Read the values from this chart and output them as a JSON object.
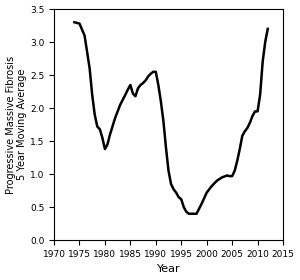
{
  "title": "",
  "xlabel": "Year",
  "ylabel": "Progressive Massive Fibrosis\n5 Year Moving Average",
  "xlim": [
    1970,
    2015
  ],
  "ylim": [
    0.0,
    3.5
  ],
  "xticks": [
    1970,
    1975,
    1980,
    1985,
    1990,
    1995,
    2000,
    2005,
    2010,
    2015
  ],
  "yticks": [
    0.0,
    0.5,
    1.0,
    1.5,
    2.0,
    2.5,
    3.0,
    3.5
  ],
  "line_color": "#000000",
  "line_width": 1.8,
  "background_color": "#ffffff",
  "years": [
    1974,
    1975,
    1976,
    1977,
    1977.5,
    1978,
    1978.5,
    1979,
    1979.5,
    1980,
    1980.5,
    1981,
    1982,
    1983,
    1984,
    1984.5,
    1985,
    1985.5,
    1986,
    1986.5,
    1987,
    1987.5,
    1988,
    1988.5,
    1989,
    1989.5,
    1990,
    1990.5,
    1991,
    1991.5,
    1992,
    1992.5,
    1993,
    1993.5,
    1994,
    1994.5,
    1995,
    1995.5,
    1996,
    1996.5,
    1997,
    1997.5,
    1998,
    1999,
    2000,
    2001,
    2002,
    2003,
    2004,
    2004.5,
    2005,
    2005.5,
    2006,
    2006.5,
    2007,
    2007.5,
    2008,
    2008.5,
    2009,
    2009.5,
    2010,
    2010.5,
    2011,
    2011.5,
    2012
  ],
  "values": [
    3.3,
    3.28,
    3.1,
    2.6,
    2.2,
    1.9,
    1.72,
    1.68,
    1.55,
    1.38,
    1.45,
    1.6,
    1.85,
    2.05,
    2.2,
    2.28,
    2.35,
    2.22,
    2.18,
    2.3,
    2.35,
    2.38,
    2.42,
    2.48,
    2.52,
    2.55,
    2.55,
    2.35,
    2.1,
    1.8,
    1.4,
    1.05,
    0.85,
    0.77,
    0.72,
    0.65,
    0.62,
    0.5,
    0.43,
    0.4,
    0.4,
    0.4,
    0.4,
    0.55,
    0.72,
    0.82,
    0.9,
    0.95,
    0.98,
    0.97,
    0.97,
    1.05,
    1.2,
    1.38,
    1.58,
    1.65,
    1.7,
    1.78,
    1.88,
    1.95,
    1.95,
    2.2,
    2.7,
    3.0,
    3.2
  ]
}
